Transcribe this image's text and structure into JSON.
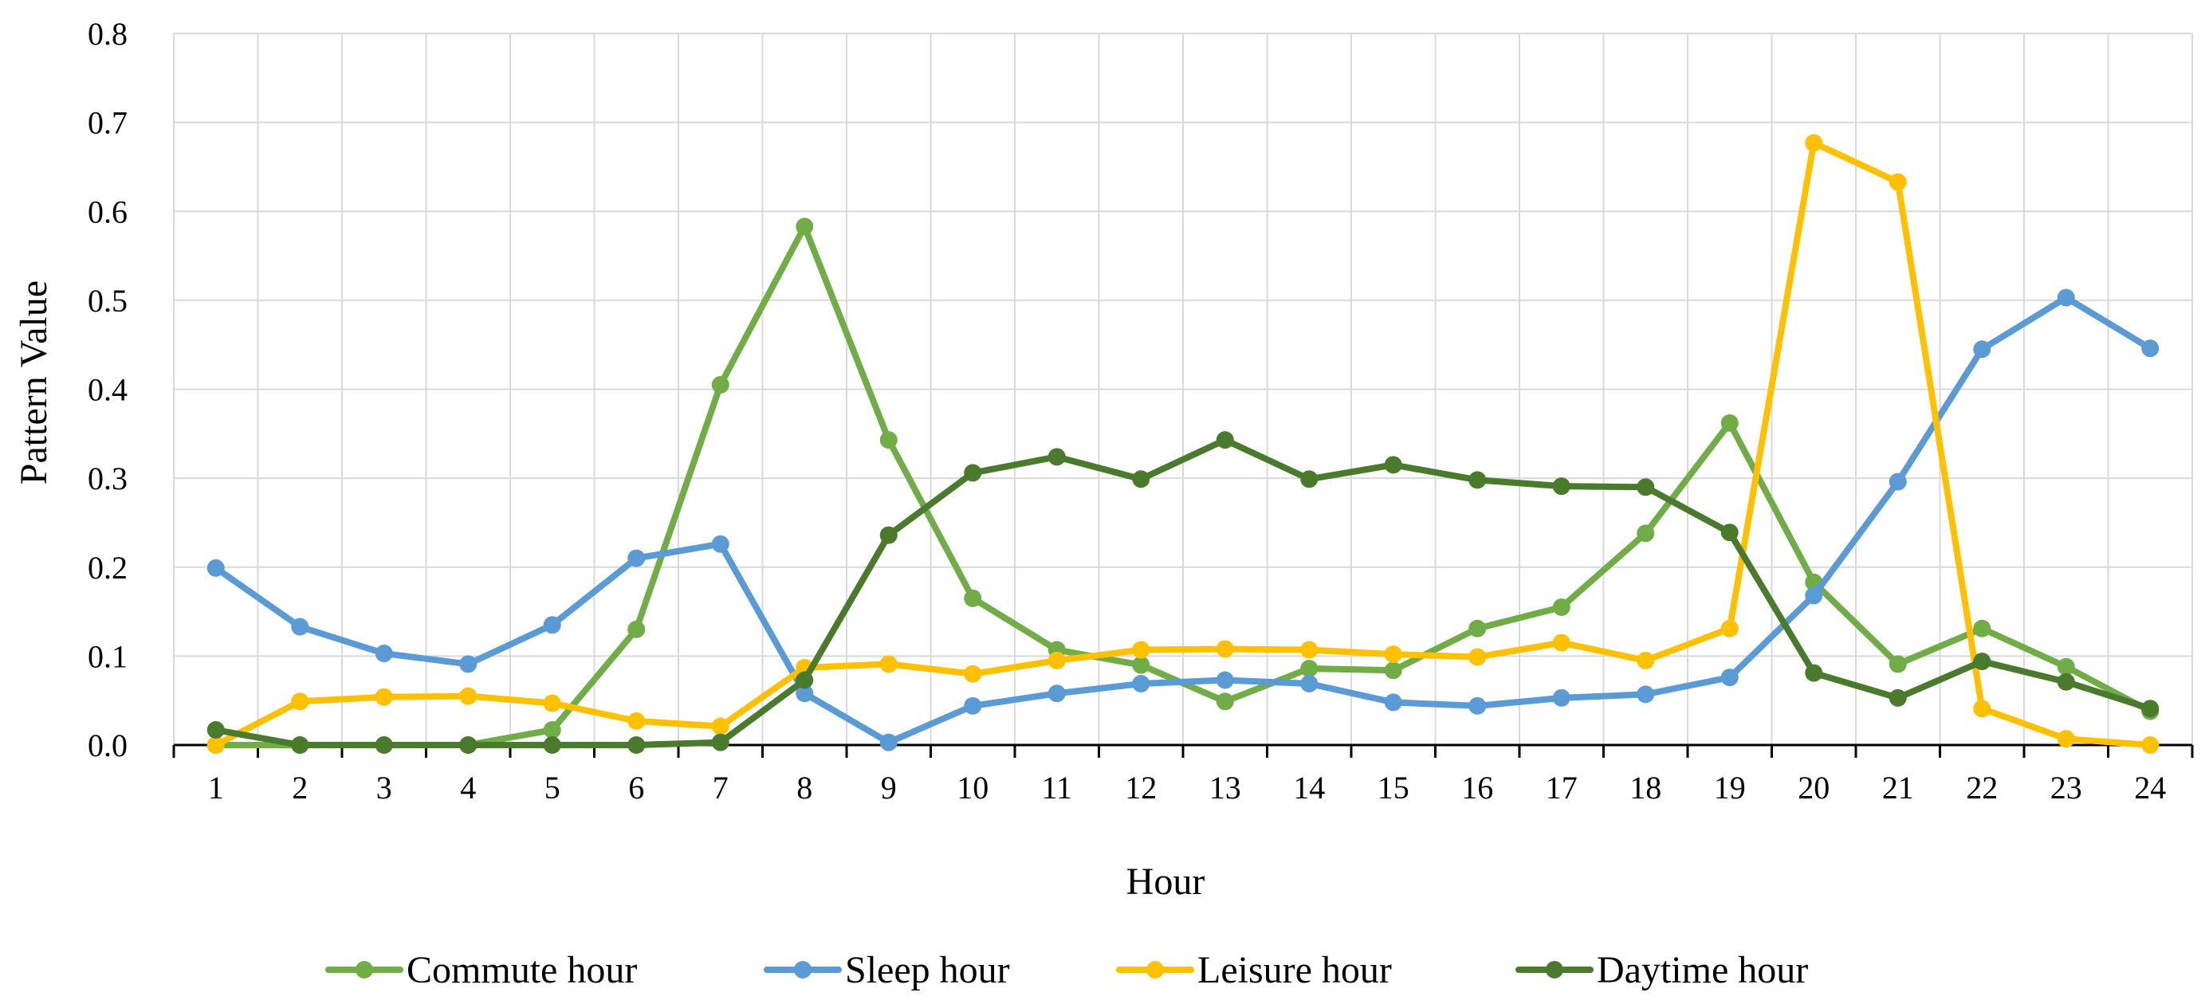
{
  "chart_data": {
    "type": "line",
    "xlabel": "Hour",
    "ylabel": "Pattern Value",
    "ylim": [
      0,
      0.8
    ],
    "yticks": [
      "0.0",
      "0.1",
      "0.2",
      "0.3",
      "0.4",
      "0.5",
      "0.6",
      "0.7",
      "0.8"
    ],
    "ytick_values": [
      0,
      0.1,
      0.2,
      0.3,
      0.4,
      0.5,
      0.6,
      0.7,
      0.8
    ],
    "x": [
      "1",
      "2",
      "3",
      "4",
      "5",
      "6",
      "7",
      "8",
      "9",
      "10",
      "11",
      "12",
      "13",
      "14",
      "15",
      "16",
      "17",
      "18",
      "19",
      "20",
      "21",
      "22",
      "23",
      "24"
    ],
    "grid": true,
    "legend_position": "bottom",
    "series": [
      {
        "name": "Commute hour",
        "color": "#70ad47",
        "values": [
          0.0,
          0.0,
          0.0,
          0.0,
          0.017,
          0.13,
          0.405,
          0.583,
          0.343,
          0.165,
          0.107,
          0.09,
          0.049,
          0.086,
          0.084,
          0.131,
          0.155,
          0.238,
          0.362,
          0.183,
          0.091,
          0.131,
          0.088,
          0.038
        ]
      },
      {
        "name": "Sleep hour",
        "color": "#5b9bd5",
        "values": [
          0.199,
          0.133,
          0.103,
          0.091,
          0.135,
          0.21,
          0.226,
          0.058,
          0.003,
          0.044,
          0.058,
          0.069,
          0.073,
          0.069,
          0.048,
          0.044,
          0.053,
          0.057,
          0.076,
          0.168,
          0.296,
          0.445,
          0.503,
          0.446
        ]
      },
      {
        "name": "Leisure hour",
        "color": "#ffc000",
        "values": [
          0.0,
          0.049,
          0.054,
          0.055,
          0.047,
          0.027,
          0.021,
          0.087,
          0.091,
          0.08,
          0.095,
          0.107,
          0.108,
          0.107,
          0.102,
          0.099,
          0.115,
          0.095,
          0.131,
          0.677,
          0.633,
          0.041,
          0.007,
          0.0
        ]
      },
      {
        "name": "Daytime hour",
        "color": "#4a7a2b",
        "values": [
          0.017,
          0.0,
          0.0,
          0.0,
          0.0,
          0.0,
          0.003,
          0.073,
          0.236,
          0.306,
          0.324,
          0.299,
          0.343,
          0.299,
          0.315,
          0.298,
          0.291,
          0.29,
          0.239,
          0.081,
          0.053,
          0.094,
          0.071,
          0.041
        ]
      }
    ]
  }
}
